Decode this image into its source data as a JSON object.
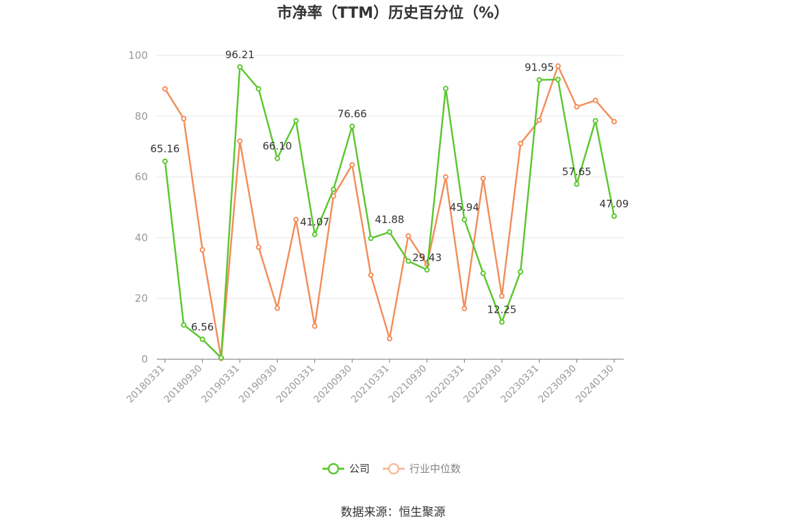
{
  "chart_data": {
    "type": "line",
    "title": "市净率（TTM）历史百分位（%）",
    "xlabel": "",
    "ylabel": "",
    "ylim": [
      0,
      100
    ],
    "yticks": [
      "0",
      "20",
      "40",
      "60",
      "80",
      "100"
    ],
    "grid": true,
    "legend_position": "bottom-center",
    "source": "数据来源：恒生聚源",
    "x": [
      "20180331",
      "20180630",
      "20180930",
      "20181231",
      "20190331",
      "20190630",
      "20190930",
      "20191231",
      "20200331",
      "20200630",
      "20200930",
      "20201231",
      "20210331",
      "20210630",
      "20210930",
      "20211231",
      "20220331",
      "20220630",
      "20220930",
      "20221231",
      "20230331",
      "20230630",
      "20230930",
      "20231231",
      "20240130"
    ],
    "xtick_labels": [
      "20180331",
      "20180930",
      "20190331",
      "20190930",
      "20200331",
      "20200930",
      "20210331",
      "20210930",
      "20220331",
      "20220930",
      "20230331",
      "20230930",
      "20240130"
    ],
    "series": [
      {
        "name": "公司",
        "color": "#5cc72f",
        "values": [
          65.16,
          11.3,
          6.56,
          0.5,
          96.21,
          89.0,
          66.1,
          78.5,
          41.07,
          55.9,
          76.66,
          39.8,
          41.88,
          32.3,
          29.43,
          89.1,
          45.94,
          28.3,
          12.25,
          28.8,
          91.95,
          92.1,
          57.65,
          78.5,
          47.09
        ],
        "labels": {
          "0": "65.16",
          "2": "6.56",
          "4": "96.21",
          "6": "66.10",
          "8": "41.07",
          "10": "76.66",
          "12": "41.88",
          "14": "29.43",
          "16": "45.94",
          "18": "12.25",
          "20": "91.95",
          "22": "57.65",
          "24": "47.09"
        }
      },
      {
        "name": "行业中位数",
        "color": "#f28e5a",
        "values": [
          89.0,
          79.2,
          36.0,
          0.3,
          71.8,
          36.9,
          16.8,
          46.0,
          10.9,
          53.7,
          64.0,
          27.7,
          6.8,
          40.6,
          31.2,
          60.0,
          16.7,
          59.5,
          20.8,
          71.0,
          78.7,
          96.5,
          83.1,
          85.2,
          78.2
        ]
      }
    ]
  }
}
